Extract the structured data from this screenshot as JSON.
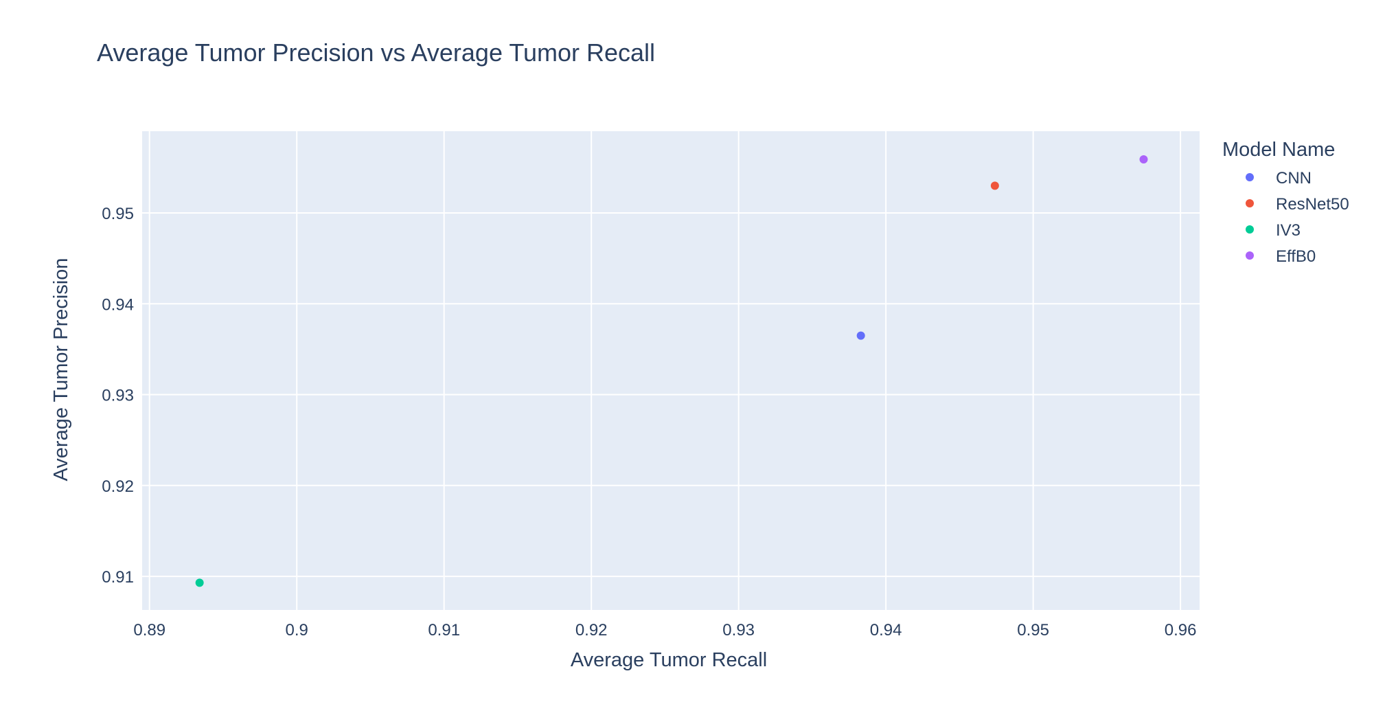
{
  "chart_data": {
    "type": "scatter",
    "title": "Average Tumor Precision vs Average Tumor Recall",
    "xlabel": "Average Tumor Recall",
    "ylabel": "Average Tumor Precision",
    "xlim": [
      0.8895,
      0.9613
    ],
    "ylim": [
      0.9063,
      0.959
    ],
    "x_ticks": [
      0.89,
      0.9,
      0.91,
      0.92,
      0.93,
      0.94,
      0.95,
      0.96
    ],
    "x_tick_labels": [
      "0.89",
      "0.9",
      "0.91",
      "0.92",
      "0.93",
      "0.94",
      "0.95",
      "0.96"
    ],
    "y_ticks": [
      0.91,
      0.92,
      0.93,
      0.94,
      0.95
    ],
    "y_tick_labels": [
      "0.91",
      "0.92",
      "0.93",
      "0.94",
      "0.95"
    ],
    "grid": true,
    "legend": {
      "title": "Model Name",
      "position": "right"
    },
    "series": [
      {
        "name": "CNN",
        "color": "#636efa",
        "x": [
          0.9383
        ],
        "y": [
          0.9365
        ]
      },
      {
        "name": "ResNet50",
        "color": "#ef553b",
        "x": [
          0.9474
        ],
        "y": [
          0.953
        ]
      },
      {
        "name": "IV3",
        "color": "#00cc96",
        "x": [
          0.8934
        ],
        "y": [
          0.9093
        ]
      },
      {
        "name": "EffB0",
        "color": "#ab63fa",
        "x": [
          0.9575
        ],
        "y": [
          0.9559
        ]
      }
    ],
    "colors": {
      "plot_bg": "#e5ecf6",
      "grid": "#ffffff",
      "text": "#2a3f5f"
    }
  }
}
